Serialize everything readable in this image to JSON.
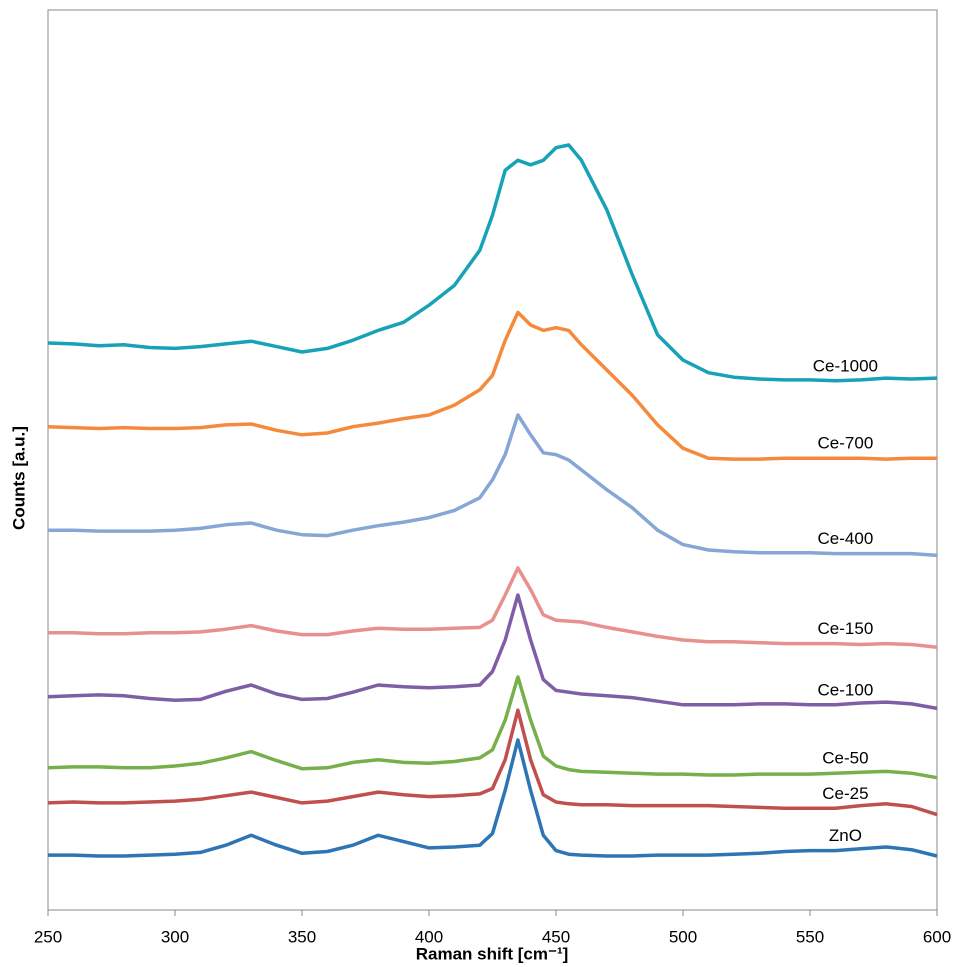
{
  "chart_data": {
    "type": "line",
    "x_label": "Raman shift [cm⁻¹]",
    "y_label": "Counts [a.u.]",
    "x": [
      250,
      260,
      270,
      280,
      290,
      300,
      310,
      320,
      330,
      340,
      350,
      360,
      370,
      380,
      390,
      400,
      410,
      420,
      425,
      430,
      435,
      440,
      445,
      450,
      455,
      460,
      470,
      480,
      490,
      500,
      510,
      520,
      530,
      540,
      550,
      560,
      570,
      580,
      590,
      600
    ],
    "xlim": [
      250,
      600
    ],
    "xticks": [
      250,
      300,
      350,
      400,
      450,
      500,
      550,
      600
    ],
    "ylim": [
      0,
      100
    ],
    "series": [
      {
        "name": "ZnO",
        "color": "#2e75b6",
        "values": [
          6.1,
          6.1,
          6.0,
          6.0,
          6.1,
          6.2,
          6.4,
          7.2,
          8.3,
          7.2,
          6.3,
          6.5,
          7.2,
          8.3,
          7.6,
          6.9,
          7.0,
          7.2,
          8.5,
          13.3,
          18.9,
          13.3,
          8.3,
          6.6,
          6.2,
          6.1,
          6.0,
          6.0,
          6.1,
          6.1,
          6.1,
          6.2,
          6.3,
          6.5,
          6.6,
          6.6,
          6.8,
          7.0,
          6.7,
          6.0
        ]
      },
      {
        "name": "Ce-25",
        "color": "#c0504d",
        "values": [
          11.9,
          12.0,
          11.9,
          11.9,
          12.0,
          12.1,
          12.3,
          12.7,
          13.1,
          12.5,
          11.9,
          12.1,
          12.6,
          13.1,
          12.8,
          12.6,
          12.7,
          12.9,
          13.5,
          16.7,
          22.2,
          16.7,
          12.8,
          12.0,
          11.8,
          11.7,
          11.7,
          11.6,
          11.6,
          11.6,
          11.6,
          11.5,
          11.4,
          11.3,
          11.3,
          11.3,
          11.6,
          11.8,
          11.5,
          10.6
        ]
      },
      {
        "name": "Ce-50",
        "color": "#77b04a",
        "values": [
          15.8,
          15.9,
          15.9,
          15.8,
          15.8,
          16.0,
          16.3,
          16.9,
          17.6,
          16.6,
          15.7,
          15.8,
          16.4,
          16.7,
          16.4,
          16.3,
          16.5,
          16.9,
          17.8,
          21.1,
          25.9,
          21.1,
          17.1,
          16.0,
          15.6,
          15.4,
          15.3,
          15.2,
          15.1,
          15.1,
          15.0,
          15.0,
          15.1,
          15.1,
          15.1,
          15.2,
          15.3,
          15.4,
          15.2,
          14.7
        ]
      },
      {
        "name": "Ce-100",
        "color": "#7e5fa6",
        "values": [
          23.7,
          23.8,
          23.9,
          23.8,
          23.5,
          23.3,
          23.4,
          24.3,
          25.0,
          24.0,
          23.4,
          23.5,
          24.2,
          25.0,
          24.8,
          24.7,
          24.8,
          25.0,
          26.5,
          30.0,
          35.0,
          30.0,
          25.6,
          24.4,
          24.2,
          24.0,
          23.8,
          23.6,
          23.2,
          22.8,
          22.8,
          22.8,
          22.9,
          22.9,
          22.8,
          22.8,
          23.0,
          23.1,
          22.9,
          22.4
        ]
      },
      {
        "name": "Ce-150",
        "color": "#e8908e",
        "values": [
          30.8,
          30.8,
          30.7,
          30.7,
          30.8,
          30.8,
          30.9,
          31.2,
          31.6,
          31.0,
          30.6,
          30.6,
          31.0,
          31.3,
          31.2,
          31.2,
          31.3,
          31.4,
          32.2,
          35.0,
          38.0,
          35.6,
          32.8,
          32.2,
          32.1,
          32.0,
          31.4,
          30.9,
          30.4,
          30.0,
          29.8,
          29.8,
          29.7,
          29.6,
          29.6,
          29.6,
          29.5,
          29.6,
          29.5,
          29.2
        ]
      },
      {
        "name": "Ce-400",
        "color": "#86a6d6",
        "values": [
          42.2,
          42.2,
          42.1,
          42.1,
          42.1,
          42.2,
          42.4,
          42.8,
          43.0,
          42.2,
          41.7,
          41.6,
          42.2,
          42.7,
          43.1,
          43.6,
          44.4,
          45.8,
          47.8,
          50.6,
          55.0,
          52.8,
          50.8,
          50.6,
          50.0,
          48.9,
          46.7,
          44.7,
          42.2,
          40.6,
          40.0,
          39.8,
          39.7,
          39.7,
          39.7,
          39.6,
          39.6,
          39.6,
          39.6,
          39.4
        ]
      },
      {
        "name": "Ce-700",
        "color": "#f68a3c",
        "values": [
          53.7,
          53.6,
          53.5,
          53.6,
          53.5,
          53.5,
          53.6,
          53.9,
          54.0,
          53.3,
          52.8,
          53.0,
          53.7,
          54.1,
          54.6,
          55.0,
          56.1,
          57.8,
          59.4,
          63.3,
          66.4,
          65.0,
          64.4,
          64.7,
          64.4,
          62.8,
          60.0,
          57.2,
          53.9,
          51.3,
          50.2,
          50.1,
          50.1,
          50.2,
          50.2,
          50.2,
          50.2,
          50.1,
          50.2,
          50.2
        ]
      },
      {
        "name": "Ce-1000",
        "color": "#17a2b8",
        "values": [
          63.0,
          62.9,
          62.7,
          62.8,
          62.5,
          62.4,
          62.6,
          62.9,
          63.2,
          62.6,
          62.0,
          62.4,
          63.3,
          64.4,
          65.3,
          67.2,
          69.4,
          73.3,
          77.2,
          82.2,
          83.3,
          82.8,
          83.3,
          84.7,
          85.0,
          83.3,
          77.8,
          70.6,
          63.9,
          61.1,
          59.7,
          59.2,
          59.0,
          58.9,
          58.9,
          58.8,
          58.9,
          59.1,
          59.0,
          59.1
        ]
      }
    ]
  }
}
